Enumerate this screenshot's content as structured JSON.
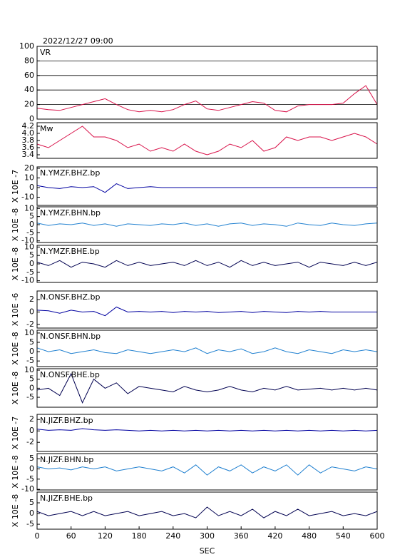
{
  "chart_data": [
    {
      "type": "line",
      "title": "2022/12/27 09:00",
      "x": [
        0,
        20,
        40,
        60,
        80,
        100,
        120,
        140,
        160,
        180,
        200,
        220,
        240,
        260,
        280,
        300,
        320,
        340,
        360,
        380,
        400,
        420,
        440,
        460,
        480,
        500,
        520,
        540,
        560,
        580,
        600
      ],
      "xlim": [
        0,
        600
      ],
      "ylim": [
        0,
        100
      ],
      "yticks": [
        0,
        20,
        40,
        60,
        80,
        100
      ],
      "grid": true,
      "series": [
        {
          "name": "VR",
          "color": "#d81048",
          "values": [
            15,
            13,
            12,
            16,
            20,
            24,
            28,
            20,
            13,
            10,
            12,
            10,
            13,
            20,
            25,
            14,
            12,
            16,
            20,
            24,
            22,
            12,
            10,
            18,
            20,
            20,
            20,
            22,
            35,
            46,
            20
          ]
        }
      ]
    },
    {
      "type": "line",
      "x": [
        0,
        20,
        40,
        60,
        80,
        100,
        120,
        140,
        160,
        180,
        200,
        220,
        240,
        260,
        280,
        300,
        320,
        340,
        360,
        380,
        400,
        420,
        440,
        460,
        480,
        500,
        520,
        540,
        560,
        580,
        600
      ],
      "xlim": [
        0,
        600
      ],
      "ylim": [
        3.3,
        4.3
      ],
      "yticks": [
        3.4,
        3.6,
        3.8,
        {
          "value": 4,
          "label": "4.0"
        },
        4.2
      ],
      "series": [
        {
          "name": "Mw",
          "color": "#d81048",
          "values": [
            3.7,
            3.6,
            3.8,
            4.0,
            4.2,
            3.9,
            3.9,
            3.8,
            3.6,
            3.7,
            3.5,
            3.6,
            3.5,
            3.7,
            3.5,
            3.4,
            3.5,
            3.7,
            3.6,
            3.8,
            3.5,
            3.6,
            3.9,
            3.8,
            3.9,
            3.9,
            3.8,
            3.9,
            4.0,
            3.9,
            3.7
          ]
        }
      ]
    },
    {
      "type": "line",
      "unit_label": "X 10E -7",
      "x": [
        0,
        20,
        40,
        60,
        80,
        100,
        120,
        140,
        160,
        180,
        200,
        220,
        240,
        260,
        280,
        300,
        320,
        340,
        360,
        380,
        400,
        420,
        440,
        460,
        480,
        500,
        520,
        540,
        560,
        580,
        600
      ],
      "xlim": [
        0,
        600
      ],
      "ylim": [
        -18.5,
        21.5
      ],
      "yticks": [
        -10,
        0,
        10,
        20
      ],
      "series": [
        {
          "name": "N.YMZF.BHZ.bp",
          "color": "#0000a0",
          "values": [
            2,
            0,
            -1,
            1,
            0,
            1,
            -5,
            4,
            -1,
            0,
            1,
            0,
            0,
            0,
            0,
            0,
            0,
            0,
            0,
            0,
            0,
            0,
            0,
            0,
            0,
            0,
            0,
            0,
            0,
            0,
            0
          ]
        }
      ]
    },
    {
      "type": "line",
      "unit_label": "X 10E -8",
      "x": [
        0,
        20,
        40,
        60,
        80,
        100,
        120,
        140,
        160,
        180,
        200,
        220,
        240,
        260,
        280,
        300,
        320,
        340,
        360,
        380,
        400,
        420,
        440,
        460,
        480,
        500,
        520,
        540,
        560,
        580,
        600
      ],
      "xlim": [
        0,
        600
      ],
      "ylim": [
        -11,
        11
      ],
      "yticks": [
        -10,
        -5,
        0,
        5,
        10
      ],
      "series": [
        {
          "name": "N.YMZF.BHN.bp",
          "color": "#2080d0",
          "values": [
            1,
            -0.5,
            0.5,
            0,
            1,
            -0.5,
            0.5,
            -1,
            0.5,
            0,
            -0.5,
            0.5,
            0,
            1,
            -0.5,
            0.5,
            -1,
            0.5,
            1,
            -0.5,
            0.5,
            0,
            -1,
            1,
            0,
            -0.5,
            1,
            0,
            -0.5,
            0.5,
            1
          ]
        }
      ]
    },
    {
      "type": "line",
      "unit_label": "X 10E -8",
      "x": [
        0,
        20,
        40,
        60,
        80,
        100,
        120,
        140,
        160,
        180,
        200,
        220,
        240,
        260,
        280,
        300,
        320,
        340,
        360,
        380,
        400,
        420,
        440,
        460,
        480,
        500,
        520,
        540,
        560,
        580,
        600
      ],
      "xlim": [
        0,
        600
      ],
      "ylim": [
        -11,
        11
      ],
      "yticks": [
        -10,
        -5,
        0,
        5,
        10
      ],
      "series": [
        {
          "name": "N.YMZF.BHE.bp",
          "color": "#000050",
          "values": [
            1,
            -1,
            2,
            -2,
            1,
            0,
            -2,
            2,
            -1,
            1,
            -1,
            0,
            1,
            -1,
            2,
            -1,
            1,
            -2,
            2,
            -1,
            1,
            -1,
            0,
            1,
            -2,
            1,
            0,
            -1,
            1,
            -1,
            1
          ]
        }
      ]
    },
    {
      "type": "line",
      "unit_label": "X 10E -6",
      "x": [
        0,
        20,
        40,
        60,
        80,
        100,
        120,
        140,
        160,
        180,
        200,
        220,
        240,
        260,
        280,
        300,
        320,
        340,
        360,
        380,
        400,
        420,
        440,
        460,
        480,
        500,
        520,
        540,
        560,
        580,
        600
      ],
      "xlim": [
        0,
        600
      ],
      "ylim": [
        -2.6,
        3.4
      ],
      "yticks": [
        -2,
        0,
        2
      ],
      "series": [
        {
          "name": "N.ONSF.BHZ.bp",
          "color": "#0000a0",
          "values": [
            0.3,
            0.2,
            -0.2,
            0.3,
            0,
            0.1,
            -0.6,
            0.8,
            0,
            0.1,
            0,
            0.1,
            -0.1,
            0.1,
            0,
            0.1,
            -0.1,
            0,
            0.1,
            -0.1,
            0.1,
            0,
            -0.1,
            0.1,
            0,
            0.1,
            0,
            0,
            0,
            0,
            0
          ]
        }
      ]
    },
    {
      "type": "line",
      "unit_label": "X 10E -8",
      "x": [
        0,
        20,
        40,
        60,
        80,
        100,
        120,
        140,
        160,
        180,
        200,
        220,
        240,
        260,
        280,
        300,
        320,
        340,
        360,
        380,
        400,
        420,
        440,
        460,
        480,
        500,
        520,
        540,
        560,
        580,
        600
      ],
      "xlim": [
        0,
        600
      ],
      "ylim": [
        -8,
        11.5
      ],
      "yticks": [
        -5,
        0,
        5,
        10
      ],
      "series": [
        {
          "name": "N.ONSF.BHN.bp",
          "color": "#2080d0",
          "values": [
            2,
            0,
            1,
            -1,
            0,
            1,
            -0.5,
            -1,
            1,
            0,
            -1,
            0,
            1,
            0,
            2,
            -1,
            1,
            0,
            1.5,
            -1,
            0,
            2,
            0,
            -1,
            1,
            0,
            -1,
            1,
            0,
            1,
            0
          ]
        }
      ]
    },
    {
      "type": "line",
      "unit_label": "X 10E -8",
      "x": [
        0,
        20,
        40,
        60,
        80,
        100,
        120,
        140,
        160,
        180,
        200,
        220,
        240,
        260,
        280,
        300,
        320,
        340,
        360,
        380,
        400,
        420,
        440,
        460,
        480,
        500,
        520,
        540,
        560,
        580,
        600
      ],
      "xlim": [
        0,
        600
      ],
      "ylim": [
        -10.5,
        10.8
      ],
      "yticks": [
        -5,
        0,
        5,
        10
      ],
      "series": [
        {
          "name": "N.ONSF.BHE.bp",
          "color": "#000050",
          "values": [
            -1,
            0,
            -4,
            8,
            -8,
            5,
            0,
            3,
            -3,
            1,
            0,
            -1,
            -2,
            1,
            -1,
            -2,
            -1,
            1,
            -1,
            -2,
            0,
            -1,
            1,
            -1,
            -0.5,
            0,
            -1,
            0,
            -1,
            0,
            -1
          ]
        }
      ]
    },
    {
      "type": "line",
      "unit_label": "X 10E -7",
      "x": [
        0,
        20,
        40,
        60,
        80,
        100,
        120,
        140,
        160,
        180,
        200,
        220,
        240,
        260,
        280,
        300,
        320,
        340,
        360,
        380,
        400,
        420,
        440,
        460,
        480,
        500,
        520,
        540,
        560,
        580,
        600
      ],
      "xlim": [
        0,
        600
      ],
      "ylim": [
        -3.6,
        2.9
      ],
      "yticks": [
        -2,
        0,
        2
      ],
      "series": [
        {
          "name": "N.JIZF.BHZ.bp",
          "color": "#0000a0",
          "values": [
            0.3,
            0.1,
            0.2,
            0.1,
            0.4,
            0.2,
            0.1,
            0.2,
            0.1,
            0,
            0.1,
            0,
            0.1,
            0,
            0.1,
            0,
            0.1,
            0,
            0.1,
            0,
            0.1,
            0,
            0.1,
            0,
            0.1,
            0,
            0.1,
            0,
            0.1,
            0,
            0.1
          ]
        }
      ]
    },
    {
      "type": "line",
      "unit_label": "X 10E -8",
      "x": [
        0,
        20,
        40,
        60,
        80,
        100,
        120,
        140,
        160,
        180,
        200,
        220,
        240,
        260,
        280,
        300,
        320,
        340,
        360,
        380,
        400,
        420,
        440,
        460,
        480,
        500,
        520,
        540,
        560,
        580,
        600
      ],
      "xlim": [
        0,
        600
      ],
      "ylim": [
        -10.3,
        7.5
      ],
      "yticks": [
        -10,
        -5,
        0,
        5
      ],
      "series": [
        {
          "name": "N.JIZF.BHN.bp",
          "color": "#2080d0",
          "values": [
            1,
            0,
            0.5,
            -0.5,
            1,
            0,
            1,
            -1,
            0,
            1,
            0,
            -1,
            1,
            -2,
            2,
            -3,
            1,
            -1,
            2,
            -2,
            1,
            -1,
            2,
            -3,
            2,
            -2,
            1,
            0,
            -1,
            1,
            0
          ]
        }
      ]
    },
    {
      "type": "line",
      "unit_label": "X 10E -8",
      "xlabel": "SEC",
      "x": [
        0,
        20,
        40,
        60,
        80,
        100,
        120,
        140,
        160,
        180,
        200,
        220,
        240,
        260,
        280,
        300,
        320,
        340,
        360,
        380,
        400,
        420,
        440,
        460,
        480,
        500,
        520,
        540,
        560,
        580,
        600
      ],
      "xlim": [
        0,
        600
      ],
      "xticks": [
        0,
        60,
        120,
        180,
        240,
        300,
        360,
        420,
        480,
        540,
        600
      ],
      "ylim": [
        -7.3,
        10
      ],
      "yticks": [
        -5,
        0,
        5
      ],
      "series": [
        {
          "name": "N.JIZF.BHE.bp",
          "color": "#000050",
          "values": [
            1,
            -1,
            0,
            1,
            -1,
            1,
            -1,
            0,
            1,
            -1,
            0,
            1,
            -1,
            0,
            -2,
            3,
            -1,
            1,
            -1,
            2,
            -2,
            1,
            -1,
            2,
            -1,
            0,
            1,
            -1,
            0,
            -1,
            1
          ]
        }
      ]
    }
  ]
}
